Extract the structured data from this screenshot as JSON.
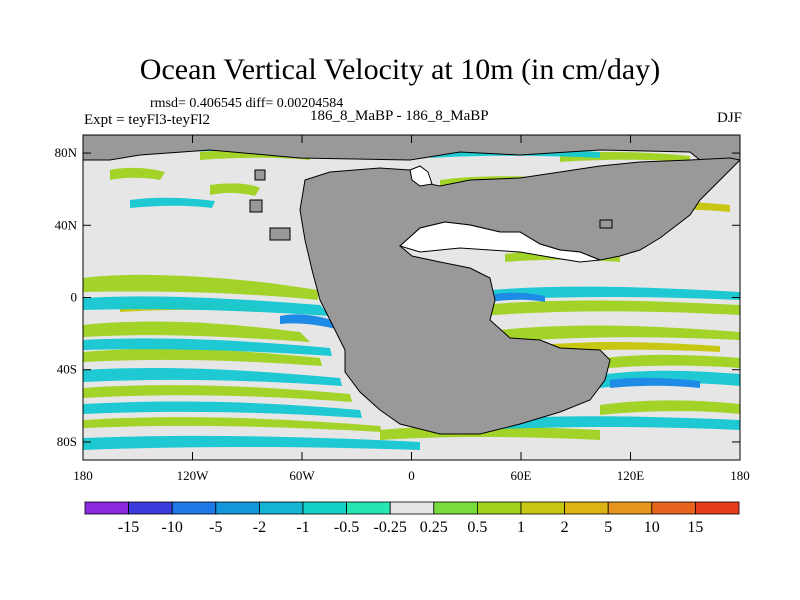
{
  "title": "Ocean Vertical Velocity at 10m (in cm/day)",
  "stats": "rmsd= 0.406545 diff= 0.00204584",
  "left_label": "Expt = teyFl3-teyFl2",
  "center_label": "186_8_MaBP - 186_8_MaBP",
  "right_label": "DJF",
  "map": {
    "lat_labels": [
      "80N",
      "40N",
      "0",
      "40S",
      "80S"
    ],
    "lon_labels": [
      "180",
      "120W",
      "60W",
      "0",
      "60E",
      "120E",
      "180"
    ],
    "land_color": "#999999",
    "background_color": "#e6e6e6"
  },
  "colorbar": {
    "colors": [
      "#8a2be2",
      "#3c3cdc",
      "#1e78e6",
      "#1496dc",
      "#14b4d2",
      "#14d2c8",
      "#28e6b4",
      "#e6e6e6",
      "#78dc3c",
      "#a0d21e",
      "#c8c814",
      "#dcb414",
      "#e6961e",
      "#e6641e",
      "#e63c1e"
    ],
    "labels": [
      "-15",
      "-10",
      "-5",
      "-2",
      "-1",
      "-0.5",
      "-0.25",
      "0.25",
      "0.5",
      "1",
      "2",
      "5",
      "10",
      "15"
    ]
  }
}
